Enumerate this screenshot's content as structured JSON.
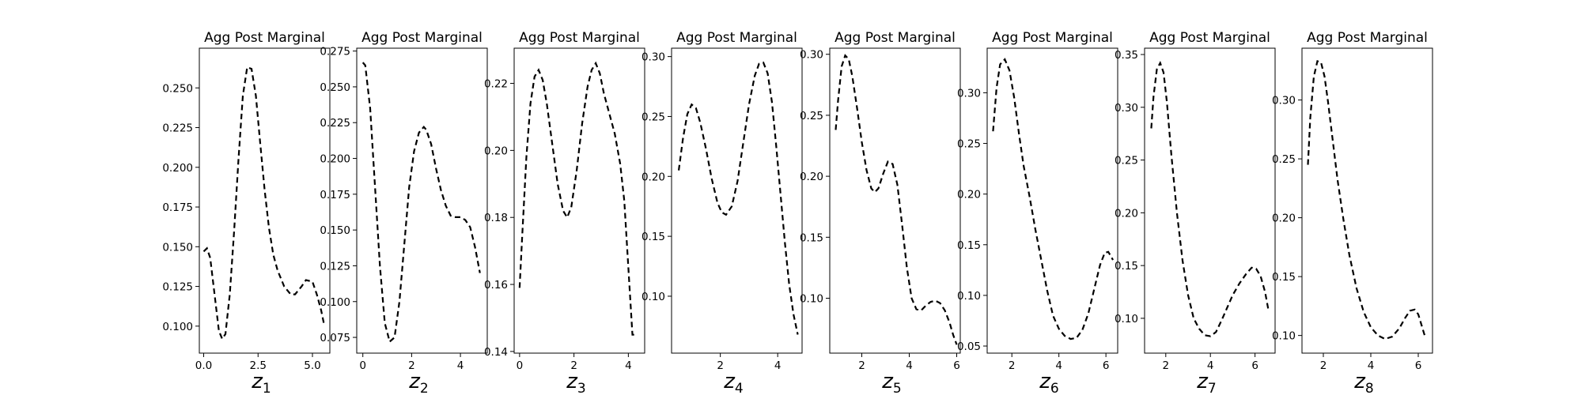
{
  "chart_data": [
    {
      "type": "line",
      "title": "Agg Post Marginal",
      "xlabel": "z",
      "xlabel_sub": "1",
      "xlim": [
        -0.2,
        5.8
      ],
      "ylim": [
        0.083,
        0.275
      ],
      "xticks": [
        0.0,
        2.5,
        5.0
      ],
      "xtick_labels": [
        "0.0",
        "2.5",
        "5.0"
      ],
      "yticks": [
        0.1,
        0.125,
        0.15,
        0.175,
        0.2,
        0.225,
        0.25
      ],
      "ytick_labels": [
        "0.100",
        "0.125",
        "0.150",
        "0.175",
        "0.200",
        "0.225",
        "0.250"
      ],
      "series": [
        {
          "x": [
            0.0,
            0.15,
            0.3,
            0.5,
            0.7,
            0.85,
            1.0,
            1.2,
            1.4,
            1.6,
            1.8,
            2.0,
            2.2,
            2.4,
            2.6,
            2.8,
            3.0,
            3.2,
            3.4,
            3.7,
            4.0,
            4.2,
            4.5,
            4.7,
            5.0,
            5.2,
            5.4,
            5.55
          ],
          "y": [
            0.147,
            0.149,
            0.143,
            0.12,
            0.097,
            0.092,
            0.095,
            0.12,
            0.16,
            0.205,
            0.245,
            0.263,
            0.262,
            0.245,
            0.215,
            0.186,
            0.162,
            0.145,
            0.135,
            0.125,
            0.12,
            0.12,
            0.125,
            0.129,
            0.128,
            0.12,
            0.11,
            0.1
          ]
        }
      ]
    },
    {
      "type": "line",
      "title": "Agg Post Marginal",
      "xlabel": "z",
      "xlabel_sub": "2",
      "xlim": [
        -0.25,
        5.1
      ],
      "ylim": [
        0.064,
        0.277
      ],
      "xticks": [
        0,
        2,
        4
      ],
      "xtick_labels": [
        "0",
        "2",
        "4"
      ],
      "yticks": [
        0.075,
        0.1,
        0.125,
        0.15,
        0.175,
        0.2,
        0.225,
        0.25,
        0.275
      ],
      "ytick_labels": [
        "0.075",
        "0.100",
        "0.125",
        "0.150",
        "0.175",
        "0.200",
        "0.225",
        "0.250",
        "0.275"
      ],
      "series": [
        {
          "x": [
            0.0,
            0.1,
            0.3,
            0.5,
            0.7,
            0.9,
            1.1,
            1.3,
            1.5,
            1.7,
            1.9,
            2.1,
            2.3,
            2.5,
            2.6,
            2.8,
            3.0,
            3.2,
            3.4,
            3.6,
            3.8,
            4.0,
            4.2,
            4.4,
            4.6,
            4.8
          ],
          "y": [
            0.267,
            0.265,
            0.235,
            0.18,
            0.125,
            0.085,
            0.072,
            0.075,
            0.1,
            0.14,
            0.18,
            0.205,
            0.218,
            0.222,
            0.22,
            0.21,
            0.193,
            0.178,
            0.167,
            0.16,
            0.159,
            0.159,
            0.157,
            0.152,
            0.138,
            0.12
          ]
        }
      ]
    },
    {
      "type": "line",
      "title": "Agg Post Marginal",
      "xlabel": "z",
      "xlabel_sub": "3",
      "xlim": [
        -0.2,
        4.6
      ],
      "ylim": [
        0.1395,
        0.2305
      ],
      "xticks": [
        0,
        2,
        4
      ],
      "xtick_labels": [
        "0",
        "2",
        "4"
      ],
      "yticks": [
        0.14,
        0.16,
        0.18,
        0.2,
        0.22
      ],
      "ytick_labels": [
        "0.14",
        "0.16",
        "0.18",
        "0.20",
        "0.22"
      ],
      "series": [
        {
          "x": [
            0.0,
            0.1,
            0.25,
            0.4,
            0.55,
            0.7,
            0.85,
            1.0,
            1.2,
            1.4,
            1.6,
            1.75,
            1.9,
            2.1,
            2.3,
            2.5,
            2.65,
            2.8,
            2.95,
            3.1,
            3.3,
            3.5,
            3.7,
            3.85,
            4.0,
            4.15,
            4.3
          ],
          "y": [
            0.159,
            0.175,
            0.198,
            0.214,
            0.222,
            0.224,
            0.221,
            0.214,
            0.202,
            0.19,
            0.182,
            0.18,
            0.183,
            0.194,
            0.208,
            0.219,
            0.224,
            0.226,
            0.223,
            0.217,
            0.211,
            0.205,
            0.196,
            0.185,
            0.165,
            0.145,
            0.145
          ]
        }
      ]
    },
    {
      "type": "line",
      "title": "Agg Post Marginal",
      "xlabel": "z",
      "xlabel_sub": "4",
      "xlim": [
        0.3,
        4.85
      ],
      "ylim": [
        0.0525,
        0.307
      ],
      "xticks": [
        2,
        4
      ],
      "xtick_labels": [
        "2",
        "4"
      ],
      "yticks": [
        0.1,
        0.15,
        0.2,
        0.25,
        0.3
      ],
      "ytick_labels": [
        "0.10",
        "0.15",
        "0.20",
        "0.25",
        "0.30"
      ],
      "series": [
        {
          "x": [
            0.55,
            0.7,
            0.85,
            1.0,
            1.15,
            1.3,
            1.5,
            1.7,
            1.9,
            2.05,
            2.2,
            2.4,
            2.6,
            2.8,
            3.0,
            3.2,
            3.35,
            3.5,
            3.65,
            3.8,
            3.95,
            4.1,
            4.25,
            4.4,
            4.55,
            4.7
          ],
          "y": [
            0.205,
            0.232,
            0.252,
            0.26,
            0.257,
            0.245,
            0.223,
            0.198,
            0.178,
            0.17,
            0.168,
            0.175,
            0.196,
            0.228,
            0.26,
            0.284,
            0.294,
            0.295,
            0.286,
            0.262,
            0.225,
            0.185,
            0.145,
            0.11,
            0.085,
            0.068
          ]
        }
      ]
    },
    {
      "type": "line",
      "title": "Agg Post Marginal",
      "xlabel": "z",
      "xlabel_sub": "5",
      "xlim": [
        0.65,
        6.15
      ],
      "ylim": [
        0.055,
        0.305
      ],
      "xticks": [
        2,
        4,
        6
      ],
      "xtick_labels": [
        "2",
        "4",
        "6"
      ],
      "yticks": [
        0.1,
        0.15,
        0.2,
        0.25,
        0.3
      ],
      "ytick_labels": [
        "0.10",
        "0.15",
        "0.20",
        "0.25",
        "0.30"
      ],
      "series": [
        {
          "x": [
            0.9,
            1.0,
            1.15,
            1.3,
            1.45,
            1.6,
            1.8,
            2.0,
            2.2,
            2.4,
            2.55,
            2.7,
            2.9,
            3.1,
            3.3,
            3.5,
            3.7,
            3.9,
            4.1,
            4.3,
            4.5,
            4.7,
            4.9,
            5.1,
            5.3,
            5.5,
            5.7,
            5.85,
            6.0
          ],
          "y": [
            0.238,
            0.262,
            0.29,
            0.299,
            0.296,
            0.282,
            0.256,
            0.228,
            0.205,
            0.19,
            0.187,
            0.19,
            0.202,
            0.212,
            0.21,
            0.193,
            0.16,
            0.125,
            0.1,
            0.091,
            0.09,
            0.094,
            0.097,
            0.098,
            0.096,
            0.09,
            0.08,
            0.07,
            0.062
          ]
        }
      ]
    },
    {
      "type": "line",
      "title": "Agg Post Marginal",
      "xlabel": "z",
      "xlabel_sub": "6",
      "xlim": [
        0.95,
        6.5
      ],
      "ylim": [
        0.043,
        0.344
      ],
      "xticks": [
        2,
        4,
        6
      ],
      "xtick_labels": [
        "2",
        "4",
        "6"
      ],
      "yticks": [
        0.05,
        0.1,
        0.15,
        0.2,
        0.25,
        0.3
      ],
      "ytick_labels": [
        "0.05",
        "0.10",
        "0.15",
        "0.20",
        "0.25",
        "0.30"
      ],
      "series": [
        {
          "x": [
            1.2,
            1.35,
            1.5,
            1.7,
            1.9,
            2.1,
            2.3,
            2.5,
            2.75,
            3.0,
            3.25,
            3.5,
            3.75,
            4.0,
            4.25,
            4.5,
            4.75,
            5.0,
            5.25,
            5.5,
            5.75,
            5.95,
            6.1,
            6.3
          ],
          "y": [
            0.262,
            0.305,
            0.328,
            0.333,
            0.322,
            0.295,
            0.26,
            0.228,
            0.198,
            0.165,
            0.135,
            0.105,
            0.08,
            0.067,
            0.06,
            0.057,
            0.058,
            0.066,
            0.082,
            0.106,
            0.13,
            0.142,
            0.143,
            0.135
          ]
        }
      ]
    },
    {
      "type": "line",
      "title": "Agg Post Marginal",
      "xlabel": "z",
      "xlabel_sub": "7",
      "xlim": [
        1.05,
        6.9
      ],
      "ylim": [
        0.067,
        0.356
      ],
      "xticks": [
        2,
        4,
        6
      ],
      "xtick_labels": [
        "2",
        "4",
        "6"
      ],
      "yticks": [
        0.1,
        0.15,
        0.2,
        0.25,
        0.3,
        0.35
      ],
      "ytick_labels": [
        "0.10",
        "0.15",
        "0.20",
        "0.25",
        "0.30",
        "0.35"
      ],
      "series": [
        {
          "x": [
            1.35,
            1.45,
            1.6,
            1.75,
            1.9,
            2.05,
            2.25,
            2.5,
            2.75,
            3.0,
            3.25,
            3.5,
            3.75,
            4.0,
            4.25,
            4.5,
            4.75,
            5.0,
            5.3,
            5.6,
            5.85,
            6.05,
            6.25,
            6.45,
            6.6
          ],
          "y": [
            0.28,
            0.31,
            0.336,
            0.342,
            0.333,
            0.305,
            0.255,
            0.2,
            0.155,
            0.122,
            0.1,
            0.09,
            0.084,
            0.083,
            0.087,
            0.098,
            0.11,
            0.122,
            0.133,
            0.142,
            0.148,
            0.147,
            0.14,
            0.125,
            0.108
          ]
        }
      ]
    },
    {
      "type": "line",
      "title": "Agg Post Marginal",
      "xlabel": "z",
      "xlabel_sub": "8",
      "xlim": [
        1.1,
        6.6
      ],
      "ylim": [
        0.085,
        0.344
      ],
      "xticks": [
        2,
        4,
        6
      ],
      "xtick_labels": [
        "2",
        "4",
        "6"
      ],
      "yticks": [
        0.1,
        0.15,
        0.2,
        0.25,
        0.3
      ],
      "ytick_labels": [
        "0.10",
        "0.15",
        "0.20",
        "0.25",
        "0.30"
      ],
      "series": [
        {
          "x": [
            1.35,
            1.45,
            1.6,
            1.75,
            1.9,
            2.05,
            2.2,
            2.4,
            2.6,
            2.85,
            3.1,
            3.4,
            3.7,
            4.0,
            4.3,
            4.6,
            4.9,
            5.2,
            5.45,
            5.65,
            5.85,
            6.0,
            6.15,
            6.3
          ],
          "y": [
            0.245,
            0.285,
            0.32,
            0.333,
            0.332,
            0.32,
            0.298,
            0.265,
            0.232,
            0.198,
            0.168,
            0.14,
            0.12,
            0.107,
            0.1,
            0.097,
            0.099,
            0.106,
            0.115,
            0.121,
            0.122,
            0.118,
            0.108,
            0.098
          ]
        }
      ]
    }
  ]
}
